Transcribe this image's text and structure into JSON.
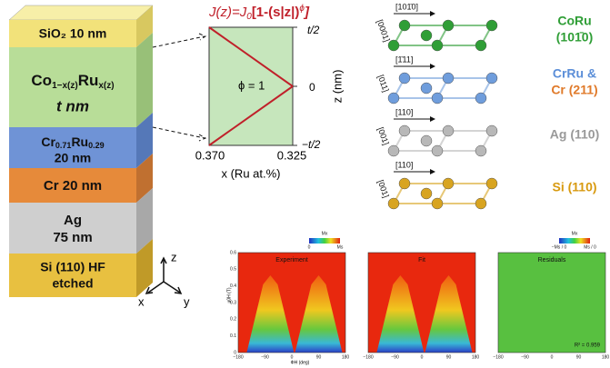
{
  "stack": {
    "layers": [
      {
        "label": "SiO₂ 10 nm"
      },
      {
        "parts": [
          "Co",
          "1−x(z)",
          "Ru",
          "x(z)"
        ],
        "label2": "t nm"
      },
      {
        "parts": [
          "Cr",
          "0.71",
          "Ru",
          "0.29"
        ],
        "label2": "20 nm"
      },
      {
        "label": "Cr 20 nm"
      },
      {
        "label": "Ag",
        "label2": "75 nm"
      },
      {
        "label": "Si (110) HF",
        "label2": "etched"
      }
    ],
    "axes": [
      "z",
      "x",
      "y"
    ]
  },
  "profile": {
    "formula": [
      "J(z)=J",
      "0",
      "[1-(s|z|)",
      "ϕ",
      "]"
    ],
    "phi": "ϕ = 1",
    "yticks": [
      "t/2",
      "0",
      "−t/2"
    ],
    "ylabel": "z (nm)",
    "xticks": [
      "0.370",
      "0.325"
    ],
    "xlabel": "x (Ru at.%)"
  },
  "crystals": [
    {
      "top": "[101̄0]",
      "side": "[0001]",
      "material": [
        "CoRu",
        "(101̄0)"
      ]
    },
    {
      "top": "[1̄11]",
      "side": "[011]",
      "material": [
        "CrRu &",
        "Cr (211)"
      ]
    },
    {
      "top": "[110]",
      "side": "[001]",
      "material": [
        "Ag (110)"
      ]
    },
    {
      "top": "[110]",
      "side": "[001]",
      "material": [
        "Si (110)"
      ]
    }
  ],
  "maps": {
    "panels": [
      "Experiment",
      "Fit",
      "Residuals"
    ],
    "colorbar_title": [
      "Mx",
      "Mx"
    ],
    "colorbar1": [
      "0",
      "Ms"
    ],
    "colorbar2": [
      "−Ms / 0",
      "Ms / 0"
    ],
    "yticks": [
      "0.6",
      "0.5",
      "0.4",
      "0.3",
      "0.2",
      "0.1",
      "0"
    ],
    "xticks": [
      "−180",
      "−90",
      "0",
      "90",
      "180"
    ],
    "ylabel": "μ0H (T)",
    "xlabel": "ΦH (deg)",
    "r2": "R² = 0.959"
  }
}
